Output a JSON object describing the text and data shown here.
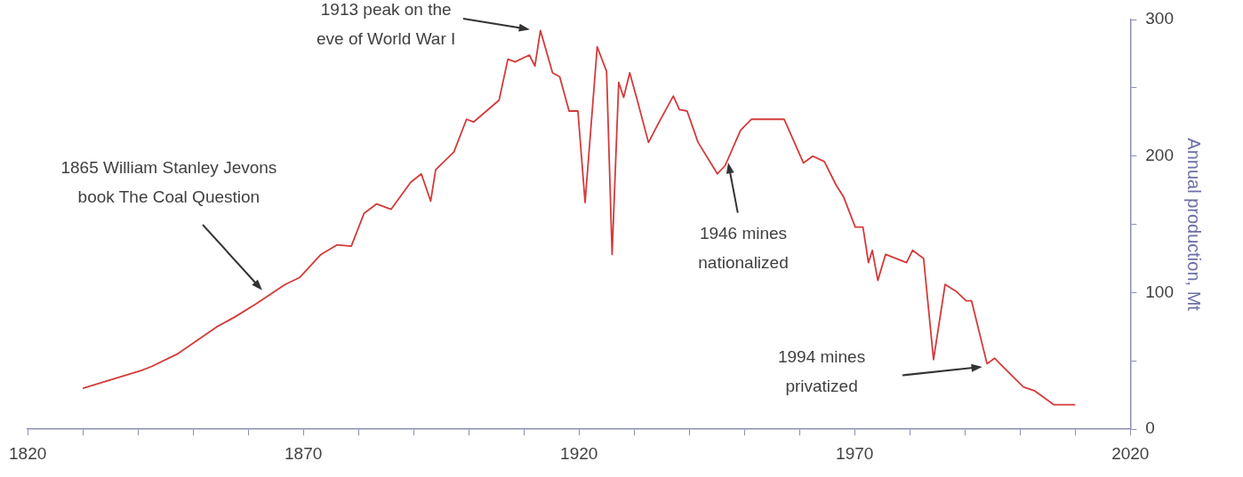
{
  "chart_data": {
    "type": "line",
    "ylabel": "Annual production, Mt",
    "x": [
      1830.0,
      1840.6,
      1842.5,
      1847.1,
      1854.3,
      1857.5,
      1861.5,
      1866.7,
      1869.3,
      1873.2,
      1876.1,
      1878.7,
      1881.0,
      1883.3,
      1885.9,
      1889.5,
      1891.4,
      1893.1,
      1894.0,
      1897.3,
      1899.6,
      1900.9,
      1903.2,
      1905.5,
      1907.1,
      1908.4,
      1911.0,
      1912.0,
      1913.0,
      1915.2,
      1916.5,
      1918.2,
      1919.8,
      1921.1,
      1923.3,
      1925.0,
      1926.0,
      1927.2,
      1928.1,
      1929.2,
      1930.5,
      1932.6,
      1934.4,
      1937.1,
      1938.2,
      1939.6,
      1941.6,
      1945.1,
      1946.5,
      1949.3,
      1951.3,
      1957.2,
      1960.7,
      1962.4,
      1964.5,
      1966.6,
      1968.0,
      1970.1,
      1971.5,
      1972.5,
      1973.2,
      1974.2,
      1975.6,
      1979.4,
      1980.5,
      1982.5,
      1984.3,
      1986.4,
      1988.4,
      1990.2,
      1991.2,
      1994.0,
      1995.4,
      1997.1,
      2000.6,
      2002.7,
      2006.1,
      2010.0
    ],
    "series": [
      {
        "color": "#d43a3a",
        "values": [
          30,
          43,
          46,
          55,
          75,
          82,
          92,
          106,
          111,
          128,
          135,
          134,
          158,
          165,
          161,
          181,
          187,
          167,
          190,
          203,
          227,
          225,
          233,
          241,
          271,
          269,
          274,
          266,
          292,
          261,
          258,
          233,
          233,
          166,
          280,
          262,
          128,
          254,
          243,
          261,
          242,
          210,
          224,
          244,
          234,
          233,
          210,
          187,
          193,
          219,
          227,
          227,
          195,
          200,
          196,
          179,
          170,
          148,
          148,
          122,
          131,
          109,
          128,
          122,
          131,
          125,
          51,
          106,
          101,
          94,
          94,
          48,
          52,
          45,
          31,
          28,
          18,
          18
        ]
      }
    ],
    "xlim": [
      1820,
      2020
    ],
    "xticks": [
      1820,
      {
        "value": 1830,
        "label": null
      },
      {
        "value": 1840,
        "label": null
      },
      {
        "value": 1850,
        "label": null
      },
      {
        "value": 1860,
        "label": null
      },
      1870,
      {
        "value": 1880,
        "label": null
      },
      {
        "value": 1890,
        "label": null
      },
      {
        "value": 1900,
        "label": null
      },
      {
        "value": 1910,
        "label": null
      },
      1920,
      {
        "value": 1930,
        "label": null
      },
      {
        "value": 1940,
        "label": null
      },
      {
        "value": 1950,
        "label": null
      },
      {
        "value": 1960,
        "label": null
      },
      1970,
      {
        "value": 1980,
        "label": null
      },
      {
        "value": 1990,
        "label": null
      },
      {
        "value": 2000,
        "label": null
      },
      {
        "value": 2010,
        "label": null
      },
      2020
    ],
    "ylim": [
      0,
      300
    ],
    "yticks": [
      0,
      {
        "value": 50,
        "label": null
      },
      100,
      {
        "value": 150,
        "label": null
      },
      200,
      {
        "value": 250,
        "label": null
      },
      300
    ],
    "grid": false,
    "legend": false,
    "marker": "none",
    "line_style": "solid",
    "annotations": [
      "1913 peak on the\neve of World War I",
      "1865 William Stanley Jevons\nbook The Coal Question",
      "1946 mines\nnationalized",
      "1994 mines\nprivatized"
    ]
  }
}
